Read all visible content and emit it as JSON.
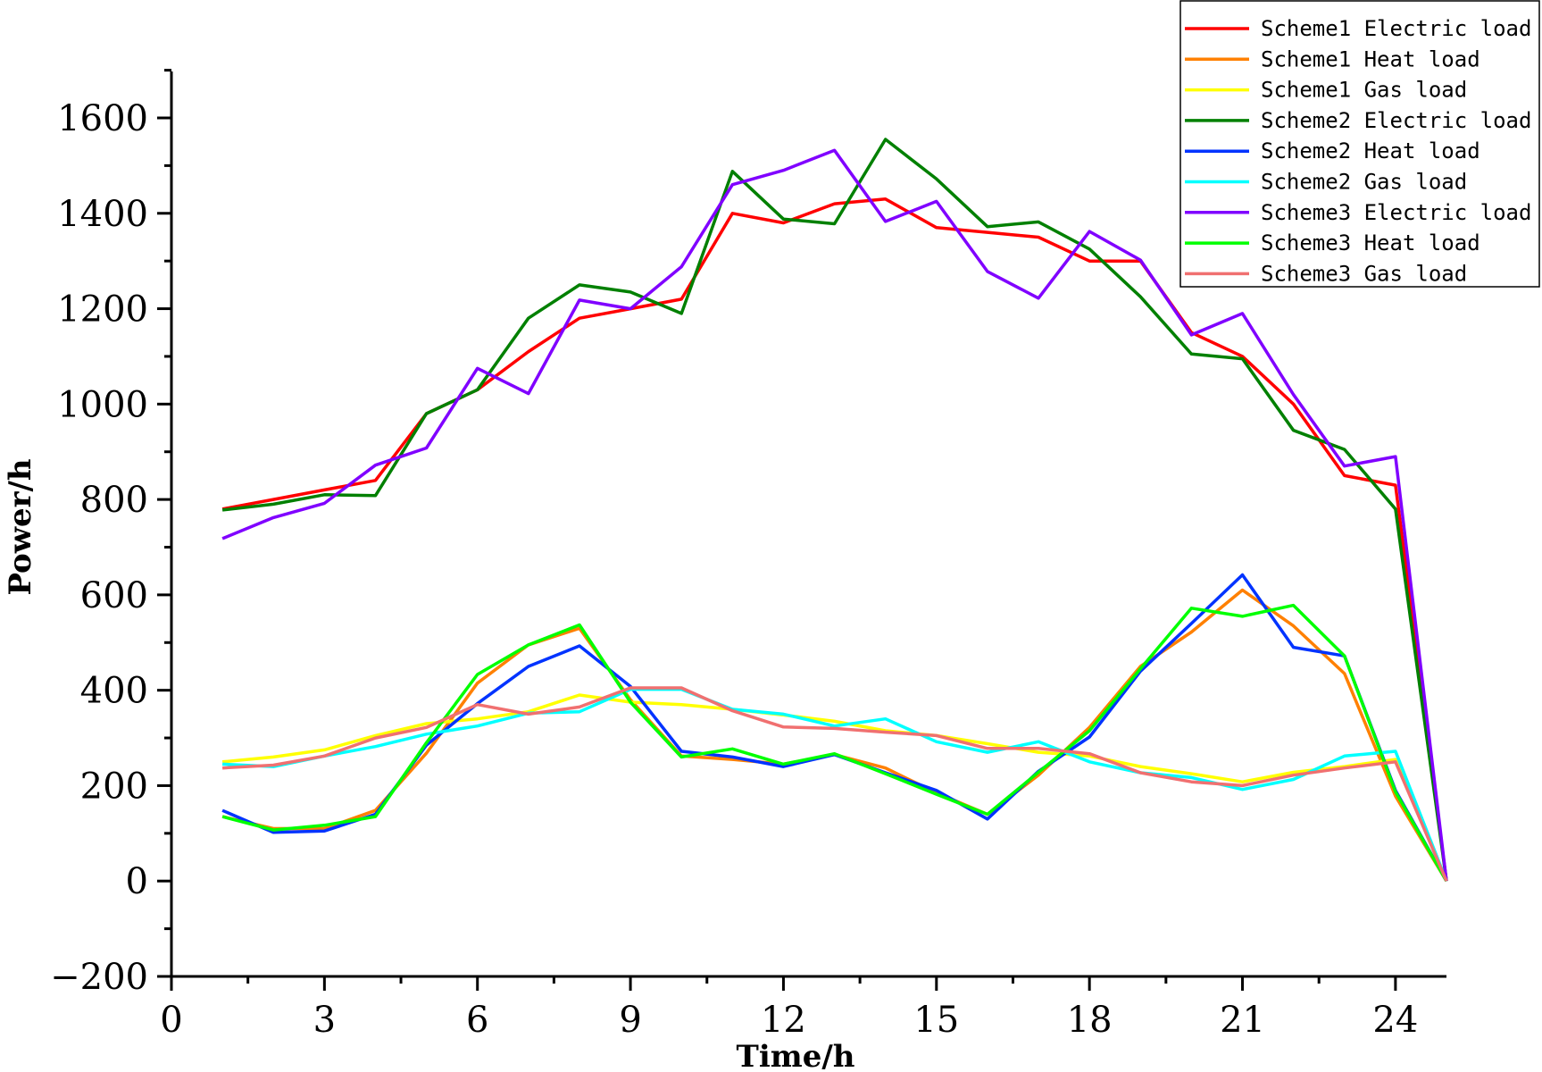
{
  "chart_data": {
    "type": "line",
    "title": "",
    "xlabel": "Time/h",
    "ylabel": "Power/h",
    "xlim": [
      0,
      25
    ],
    "ylim": [
      -200,
      1700
    ],
    "xticks": [
      0,
      3,
      6,
      9,
      12,
      15,
      18,
      21,
      24
    ],
    "yticks": [
      -200,
      0,
      200,
      400,
      600,
      800,
      1000,
      1200,
      1400,
      1600
    ],
    "x": [
      1,
      2,
      3,
      4,
      5,
      6,
      7,
      8,
      9,
      10,
      11,
      12,
      13,
      14,
      15,
      16,
      17,
      18,
      19,
      20,
      21,
      22,
      23,
      24,
      25
    ],
    "legend_position": "top-right",
    "series": [
      {
        "name": "Scheme1 Electric load",
        "color": "#ff0000",
        "values": [
          780,
          800,
          820,
          840,
          980,
          1030,
          1110,
          1180,
          1200,
          1220,
          1400,
          1380,
          1420,
          1430,
          1370,
          1360,
          1350,
          1300,
          1300,
          1150,
          1100,
          1000,
          850,
          830,
          0
        ]
      },
      {
        "name": "Scheme1 Heat load",
        "color": "#ff8000",
        "values": [
          135,
          110,
          110,
          148,
          268,
          415,
          495,
          530,
          380,
          262,
          255,
          245,
          265,
          237,
          185,
          140,
          222,
          322,
          450,
          522,
          610,
          535,
          435,
          178,
          0
        ]
      },
      {
        "name": "Scheme1 Gas load",
        "color": "#ffff00",
        "values": [
          250,
          260,
          275,
          305,
          330,
          340,
          355,
          390,
          375,
          370,
          360,
          348,
          335,
          315,
          305,
          288,
          270,
          262,
          240,
          225,
          208,
          228,
          240,
          255,
          0
        ]
      },
      {
        "name": "Scheme2 Electric load",
        "color": "#008000",
        "values": [
          778,
          790,
          810,
          808,
          980,
          1030,
          1180,
          1250,
          1235,
          1190,
          1488,
          1388,
          1378,
          1555,
          1472,
          1372,
          1382,
          1325,
          1225,
          1105,
          1095,
          945,
          905,
          780,
          0
        ]
      },
      {
        "name": "Scheme2 Heat load",
        "color": "#0033ff",
        "values": [
          148,
          102,
          105,
          140,
          285,
          372,
          450,
          493,
          408,
          272,
          260,
          240,
          265,
          227,
          190,
          130,
          230,
          302,
          440,
          540,
          642,
          490,
          472,
          190,
          0
        ]
      },
      {
        "name": "Scheme2 Gas load",
        "color": "#00ffff",
        "values": [
          245,
          240,
          262,
          282,
          308,
          325,
          352,
          355,
          402,
          402,
          360,
          350,
          325,
          340,
          292,
          270,
          292,
          250,
          227,
          217,
          192,
          213,
          262,
          272,
          0
        ]
      },
      {
        "name": "Scheme3 Electric load",
        "color": "#8000ff",
        "values": [
          718,
          762,
          792,
          872,
          908,
          1075,
          1022,
          1218,
          1200,
          1288,
          1460,
          1490,
          1532,
          1383,
          1425,
          1278,
          1222,
          1362,
          1302,
          1145,
          1190,
          1020,
          870,
          890,
          0
        ]
      },
      {
        "name": "Scheme3 Heat load",
        "color": "#00ff00",
        "values": [
          135,
          107,
          117,
          135,
          290,
          433,
          495,
          537,
          375,
          260,
          277,
          245,
          267,
          225,
          182,
          140,
          228,
          315,
          445,
          572,
          555,
          578,
          472,
          187,
          0
        ]
      },
      {
        "name": "Scheme3 Gas load",
        "color": "#f07070",
        "values": [
          237,
          243,
          262,
          300,
          322,
          370,
          350,
          365,
          405,
          405,
          357,
          323,
          320,
          312,
          305,
          278,
          278,
          267,
          227,
          208,
          200,
          222,
          237,
          250,
          0
        ]
      }
    ]
  }
}
